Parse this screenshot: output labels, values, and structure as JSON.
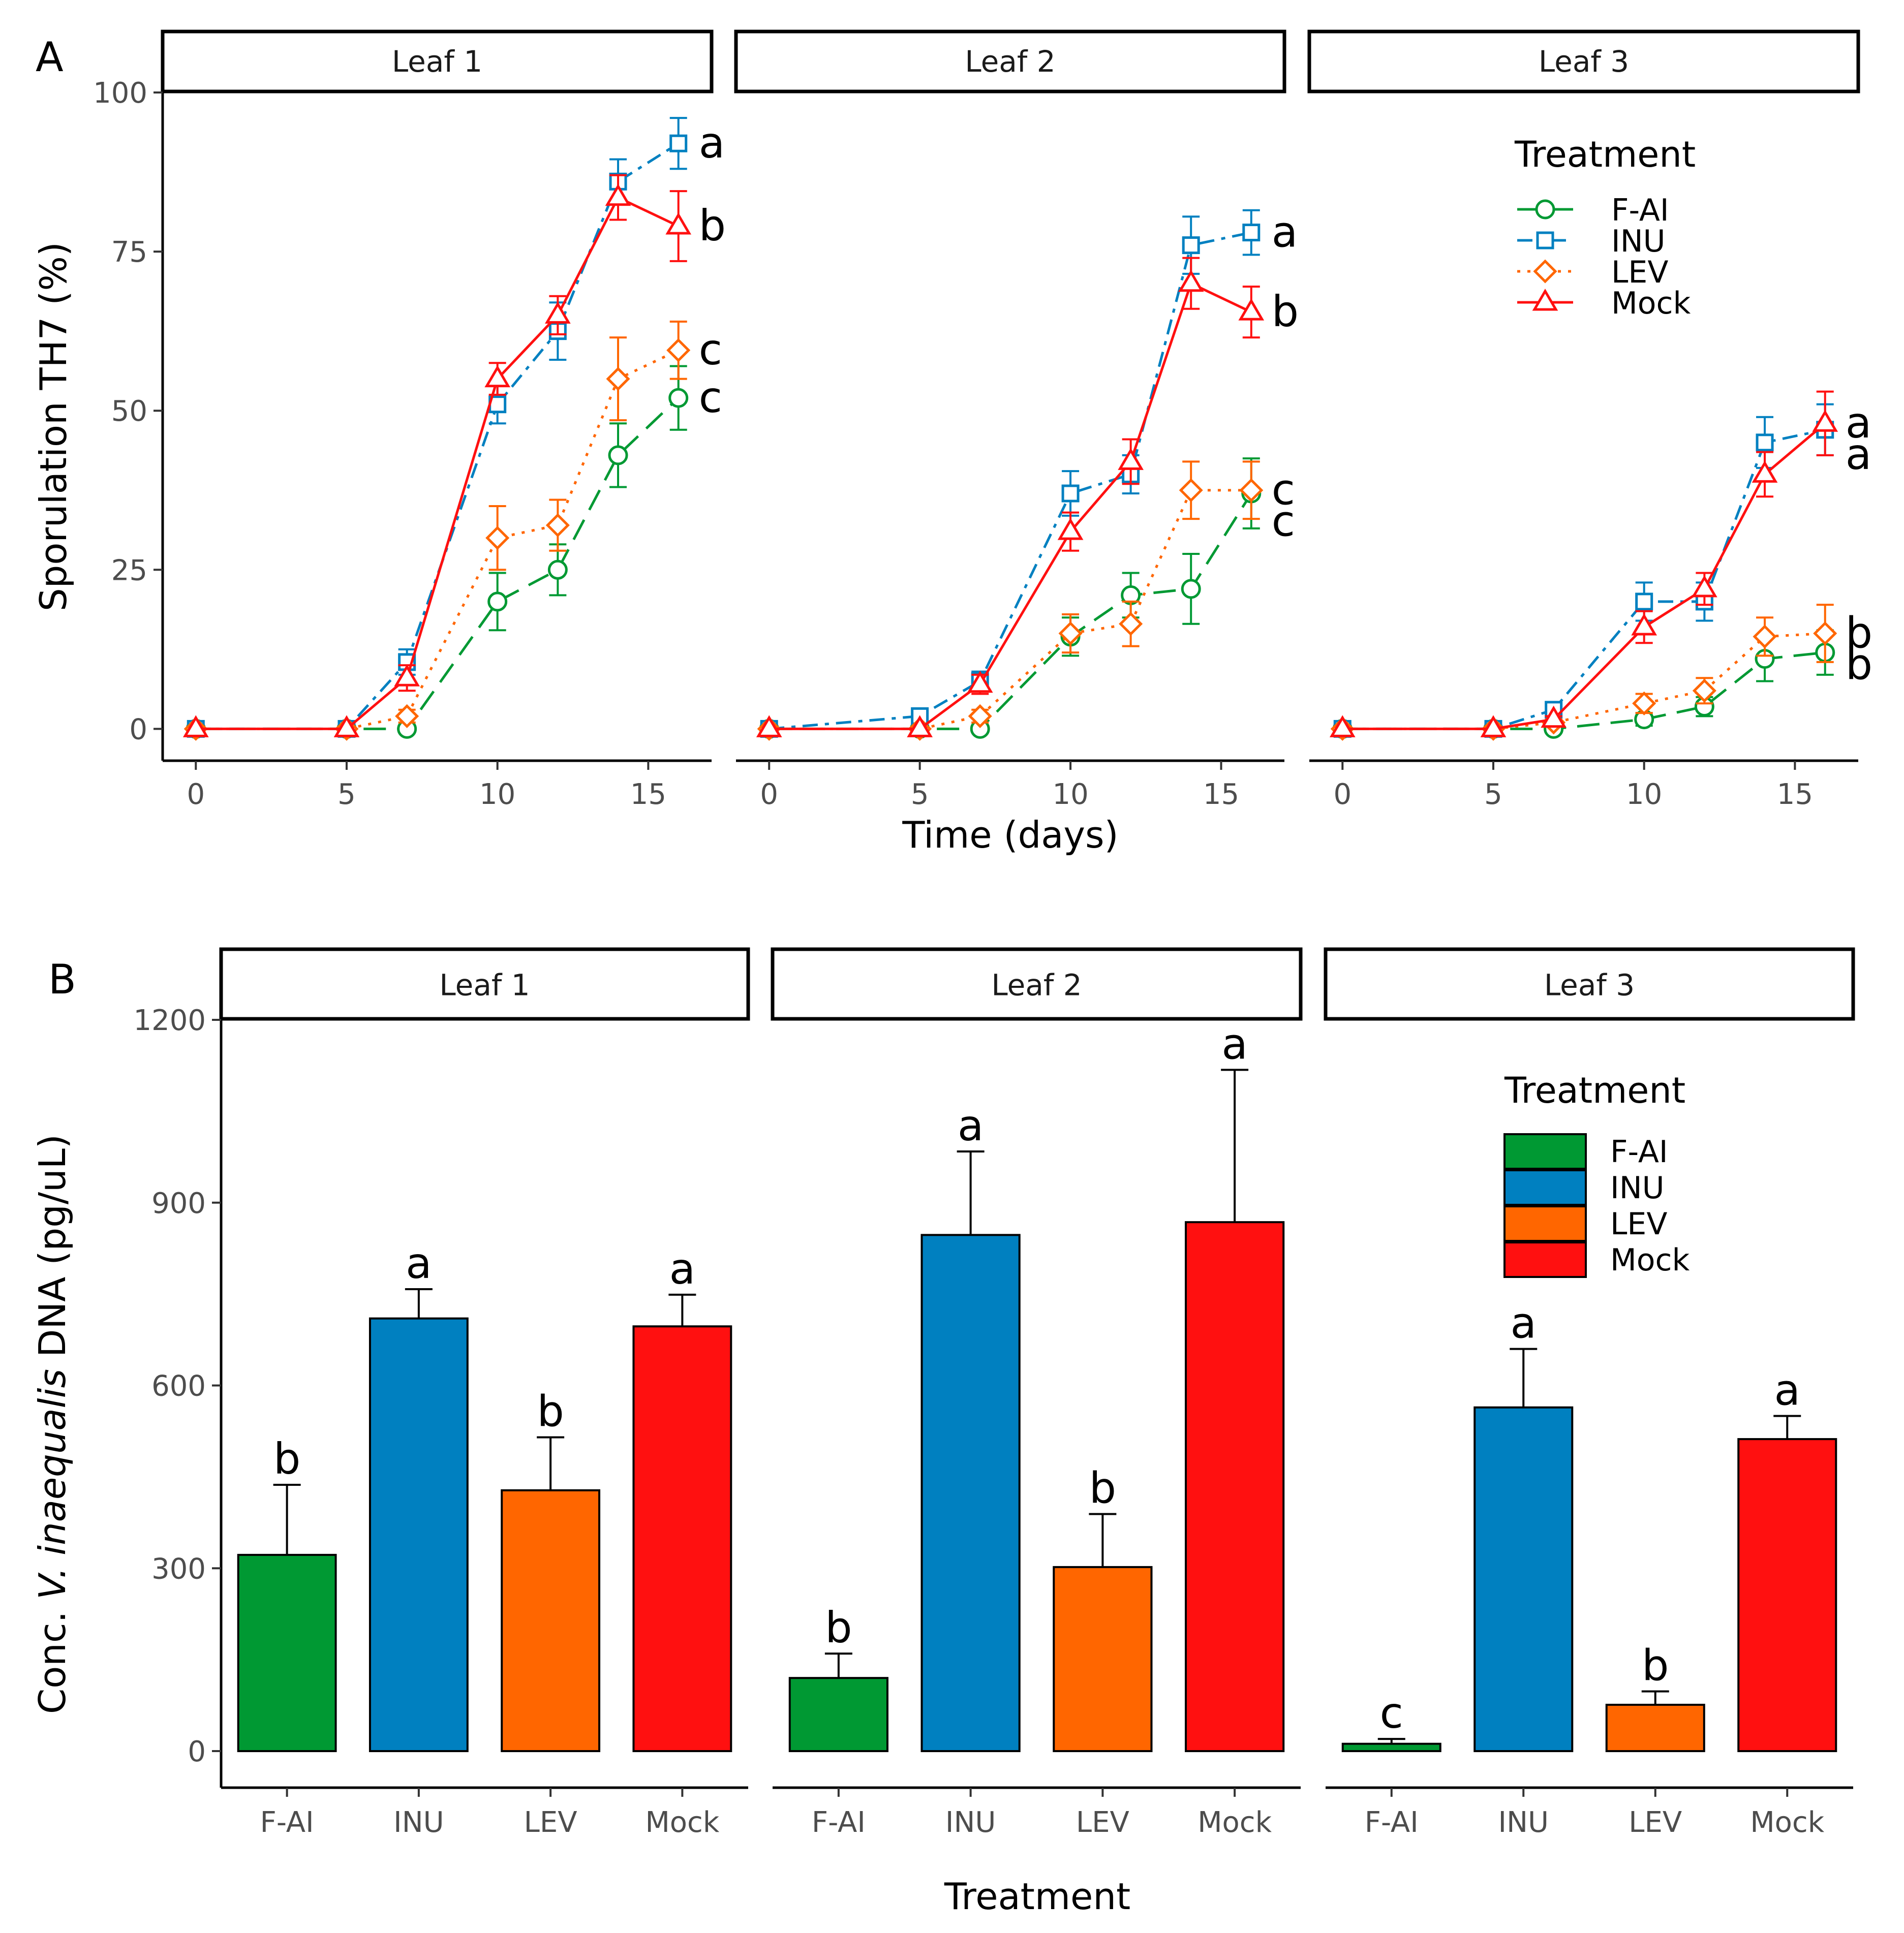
{
  "figure": {
    "panel_a_label": "A",
    "panel_b_label": "B"
  },
  "colors": {
    "F-AI": "#009933",
    "INU": "#0080c0",
    "LEV": "#ff6600",
    "Mock": "#ff1010"
  },
  "chart_data": [
    {
      "id": "A",
      "type": "line",
      "xlabel": "Time (days)",
      "ylabel": "Sporulation TH7 (%)",
      "xlim": [
        -1.1,
        17.1
      ],
      "ylim": [
        -5,
        100
      ],
      "xticks": [
        0,
        5,
        10,
        15
      ],
      "yticks": [
        0,
        25,
        50,
        75,
        100
      ],
      "legend": {
        "title": "Treatment",
        "position": "inside top-right of Leaf 3",
        "entries": [
          "F-AI",
          "INU",
          "LEV",
          "Mock"
        ]
      },
      "x": [
        0,
        5,
        7,
        10,
        12,
        14,
        16
      ],
      "facets": [
        {
          "strip": "Leaf 1",
          "series": [
            {
              "name": "F-AI",
              "values": [
                0,
                0,
                0,
                20,
                25,
                43,
                52
              ],
              "err": [
                0,
                0,
                0,
                4.5,
                4,
                5,
                5
              ]
            },
            {
              "name": "INU",
              "values": [
                0,
                0,
                10.5,
                51,
                62.5,
                86,
                92
              ],
              "err": [
                0,
                0,
                2,
                3,
                4.5,
                3.5,
                4
              ]
            },
            {
              "name": "LEV",
              "values": [
                0,
                0,
                2,
                30,
                32,
                55,
                59.5
              ],
              "err": [
                0,
                0,
                1,
                5,
                4,
                6.5,
                4.5
              ]
            },
            {
              "name": "Mock",
              "values": [
                0,
                0,
                8,
                55,
                65,
                83.5,
                79
              ],
              "err": [
                0,
                0,
                2,
                2.5,
                3,
                3.5,
                5.5
              ]
            }
          ],
          "sig_labels": [
            {
              "series": "INU",
              "text": "a"
            },
            {
              "series": "Mock",
              "text": "b"
            },
            {
              "series": "LEV",
              "text": "c"
            },
            {
              "series": "F-AI",
              "text": "c"
            }
          ]
        },
        {
          "strip": "Leaf 2",
          "series": [
            {
              "name": "F-AI",
              "values": [
                0,
                0,
                0,
                14.5,
                21,
                22,
                37
              ],
              "err": [
                0,
                0,
                0,
                3,
                3.5,
                5.5,
                5.5
              ]
            },
            {
              "name": "INU",
              "values": [
                0,
                2,
                7.5,
                37,
                40,
                76,
                78
              ],
              "err": [
                0,
                0.5,
                1.5,
                3.5,
                3,
                4.5,
                3.5
              ]
            },
            {
              "name": "LEV",
              "values": [
                0,
                0,
                2,
                15,
                16.5,
                37.5,
                37.5
              ],
              "err": [
                0,
                0,
                1,
                3,
                3.5,
                4.5,
                4.5
              ]
            },
            {
              "name": "Mock",
              "values": [
                0,
                0,
                7,
                31,
                42,
                70,
                65.5
              ],
              "err": [
                0,
                0,
                1.5,
                3,
                3.5,
                4,
                4
              ]
            }
          ],
          "sig_labels": [
            {
              "series": "INU",
              "text": "a"
            },
            {
              "series": "Mock",
              "text": "b"
            },
            {
              "series": "LEV",
              "text": "c"
            },
            {
              "series": "F-AI",
              "text": "c"
            }
          ]
        },
        {
          "strip": "Leaf 3",
          "series": [
            {
              "name": "F-AI",
              "values": [
                0,
                0,
                0,
                1.5,
                3.5,
                11,
                12
              ],
              "err": [
                0,
                0,
                0,
                1,
                1.5,
                3.5,
                3.5
              ]
            },
            {
              "name": "INU",
              "values": [
                0,
                0,
                3,
                20,
                20,
                45,
                47
              ],
              "err": [
                0,
                0,
                1,
                3,
                3,
                4,
                4
              ]
            },
            {
              "name": "LEV",
              "values": [
                0,
                0,
                1,
                4,
                6,
                14.5,
                15
              ],
              "err": [
                0,
                0,
                0.5,
                1.5,
                2,
                3,
                4.5
              ]
            },
            {
              "name": "Mock",
              "values": [
                0,
                0,
                1.5,
                16,
                22,
                40,
                48
              ],
              "err": [
                0,
                0,
                0.5,
                2.5,
                2.5,
                3.5,
                5
              ]
            }
          ],
          "sig_labels": [
            {
              "series": "Mock",
              "text": "a"
            },
            {
              "series": "INU",
              "text": "a"
            },
            {
              "series": "LEV",
              "text": "b"
            },
            {
              "series": "F-AI",
              "text": "b"
            }
          ]
        }
      ]
    },
    {
      "id": "B",
      "type": "bar",
      "xlabel": "Treatment",
      "ylabel_prefix": "Conc. ",
      "ylabel_italic": "V. inaequalis",
      "ylabel_suffix": " DNA (pg/uL)",
      "ylim": [
        -60,
        1200
      ],
      "yticks": [
        0,
        300,
        600,
        900,
        1200
      ],
      "categories": [
        "F-AI",
        "INU",
        "LEV",
        "Mock"
      ],
      "legend": {
        "title": "Treatment",
        "position": "inside top-right of Leaf 3",
        "entries": [
          "F-AI",
          "INU",
          "LEV",
          "Mock"
        ]
      },
      "facets": [
        {
          "strip": "Leaf 1",
          "values": [
            322,
            710,
            428,
            697
          ],
          "err": [
            115,
            48,
            87,
            52
          ],
          "sig": [
            "b",
            "a",
            "b",
            "a"
          ]
        },
        {
          "strip": "Leaf 2",
          "values": [
            120,
            847,
            302,
            868
          ],
          "err": [
            40,
            137,
            87,
            250
          ],
          "sig": [
            "b",
            "a",
            "b",
            "a"
          ]
        },
        {
          "strip": "Leaf 3",
          "values": [
            12,
            564,
            76,
            512
          ],
          "err": [
            8,
            96,
            22,
            38
          ],
          "sig": [
            "c",
            "a",
            "b",
            "a"
          ]
        }
      ]
    }
  ]
}
